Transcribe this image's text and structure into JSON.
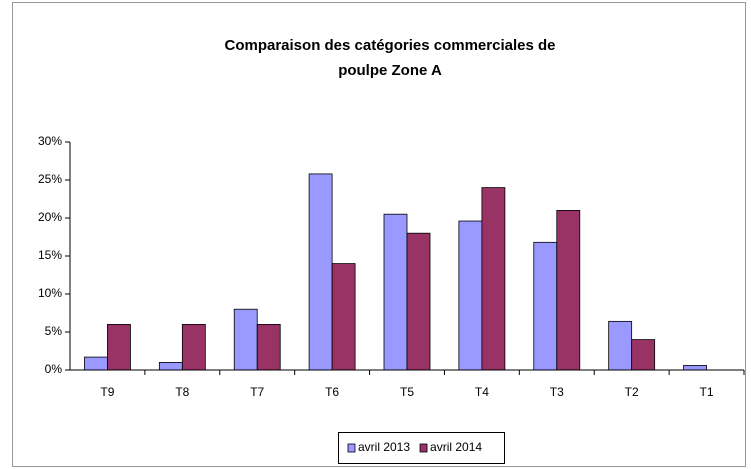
{
  "chart_data": {
    "type": "bar",
    "title": [
      "Comparaison des catégories commerciales de",
      "poulpe Zone A"
    ],
    "categories": [
      "T9",
      "T8",
      "T7",
      "T6",
      "T5",
      "T4",
      "T3",
      "T2",
      "T1"
    ],
    "series": [
      {
        "name": "avril 2013",
        "color": "#9999ff",
        "values": [
          1.7,
          1,
          8,
          25.8,
          20.5,
          19.6,
          16.8,
          6.4,
          0.6
        ]
      },
      {
        "name": "avril 2014",
        "color": "#993366",
        "values": [
          6,
          6,
          6,
          14,
          18,
          24,
          21,
          4,
          0
        ]
      }
    ],
    "ylim": [
      0,
      30
    ],
    "yticks": [
      {
        "value": 0,
        "label": "0%"
      },
      {
        "value": 5,
        "label": "5%"
      },
      {
        "value": 10,
        "label": "10%"
      },
      {
        "value": 15,
        "label": "15%"
      },
      {
        "value": 20,
        "label": "20%"
      },
      {
        "value": 25,
        "label": "25%"
      },
      {
        "value": 30,
        "label": "30%"
      }
    ],
    "grid": false,
    "legend": "bottom"
  }
}
